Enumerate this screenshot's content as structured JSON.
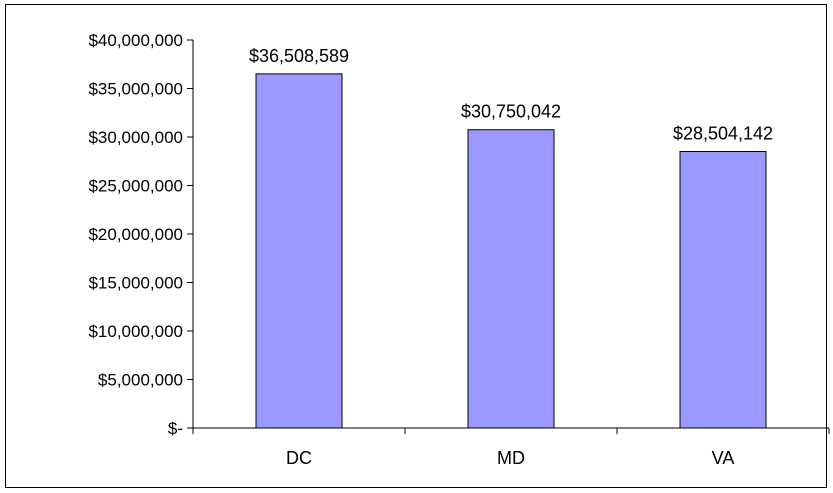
{
  "chart_data": {
    "type": "bar",
    "categories": [
      "DC",
      "MD",
      "VA"
    ],
    "values": [
      36508589,
      30750042,
      28504142
    ],
    "data_labels": [
      "$36,508,589",
      "$30,750,042",
      "$28,504,142"
    ],
    "ylim": [
      0,
      40000000
    ],
    "yticks": [
      0,
      5000000,
      10000000,
      15000000,
      20000000,
      25000000,
      30000000,
      35000000,
      40000000
    ],
    "ytick_labels": [
      "$-",
      "$5,000,000",
      "$10,000,000",
      "$15,000,000",
      "$20,000,000",
      "$25,000,000",
      "$30,000,000",
      "$35,000,000",
      "$40,000,000"
    ],
    "bar_color": "#9999FF",
    "grid": false,
    "legend": "none"
  }
}
